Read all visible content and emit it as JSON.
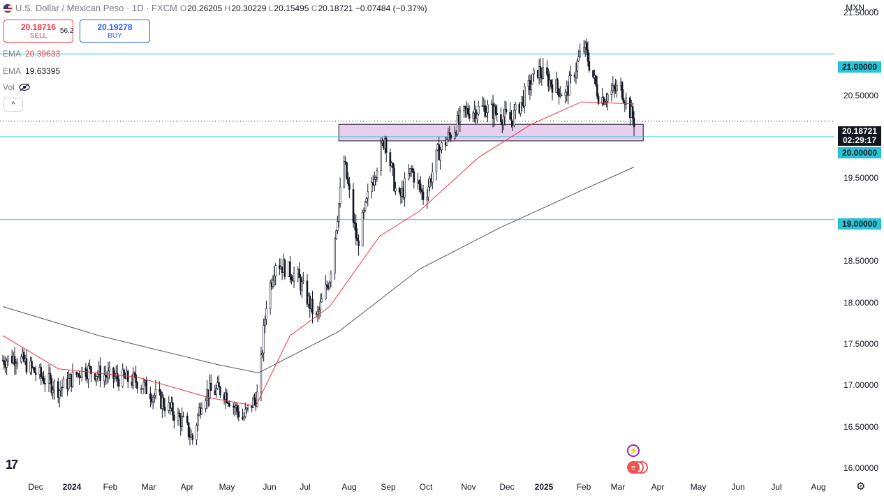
{
  "header": {
    "symbol_title": "U.S. Dollar / Mexican Peso · 1D · FXCM",
    "ohlc": [
      {
        "k": "O",
        "v": "20.26205"
      },
      {
        "k": "H",
        "v": "20.30229"
      },
      {
        "k": "L",
        "v": "20.15495"
      },
      {
        "k": "C",
        "v": "20.18721"
      }
    ],
    "change": "−0.07484 (−0.37%)",
    "currency": "MXN",
    "change_color": "#f23645"
  },
  "trade": {
    "sell_price": "20.18716",
    "sell_label": "SELL",
    "spread": "56.2",
    "buy_price": "20.19278",
    "buy_label": "BUY"
  },
  "indicators": [
    {
      "label": "EMA",
      "value": "20.39633",
      "color": "#f23645"
    },
    {
      "label": "EMA",
      "value": "19.63395",
      "color": "#555555"
    },
    {
      "label": "Vol",
      "value": "",
      "color": "#787b86"
    }
  ],
  "collapse_symbol": "^",
  "price_axis": {
    "ticks": [
      "21.50000",
      "21.00000",
      "20.50000",
      "20.00000",
      "19.50000",
      "19.00000",
      "18.50000",
      "18.00000",
      "17.50000",
      "17.00000",
      "16.50000",
      "16.00000"
    ],
    "current_price": "20.18721",
    "countdown": "02:29:17"
  },
  "time_axis": {
    "ticks": [
      "Dec",
      "2024",
      "Feb",
      "Mar",
      "Apr",
      "May",
      "Jun",
      "Jul",
      "Aug",
      "Sep",
      "Oct",
      "Nov",
      "Dec",
      "2025",
      "Feb",
      "Mar",
      "Apr",
      "May",
      "Jun",
      "Jul",
      "Aug"
    ]
  },
  "colors": {
    "level_line": "#26c6da",
    "zone_fill": "#e1bee7",
    "ema_fast": "#f23645",
    "ema_slow": "#555555",
    "candle": "#131722"
  },
  "chart_data": {
    "type": "candlestick",
    "symbol": "USD/MXN",
    "timeframe": "1D",
    "ylim": [
      15.9,
      21.65
    ],
    "horizontal_levels": [
      21.0,
      20.0,
      19.0
    ],
    "zone": {
      "from": "2024-08-01",
      "to": "2025-03-20",
      "low": 19.95,
      "high": 20.15
    },
    "close_path": [
      {
        "date": "2023-11-20",
        "close": 17.3
      },
      {
        "date": "2023-12-01",
        "close": 17.35
      },
      {
        "date": "2023-12-15",
        "close": 17.15
      },
      {
        "date": "2024-01-02",
        "close": 16.95
      },
      {
        "date": "2024-01-20",
        "close": 17.2
      },
      {
        "date": "2024-02-10",
        "close": 17.1
      },
      {
        "date": "2024-03-01",
        "close": 17.05
      },
      {
        "date": "2024-03-20",
        "close": 16.8
      },
      {
        "date": "2024-04-05",
        "close": 16.55
      },
      {
        "date": "2024-04-12",
        "close": 16.35
      },
      {
        "date": "2024-04-20",
        "close": 16.9
      },
      {
        "date": "2024-05-05",
        "close": 16.95
      },
      {
        "date": "2024-05-20",
        "close": 16.6
      },
      {
        "date": "2024-06-01",
        "close": 16.9
      },
      {
        "date": "2024-06-07",
        "close": 18.0
      },
      {
        "date": "2024-06-14",
        "close": 18.5
      },
      {
        "date": "2024-07-01",
        "close": 18.3
      },
      {
        "date": "2024-07-15",
        "close": 17.8
      },
      {
        "date": "2024-07-25",
        "close": 18.3
      },
      {
        "date": "2024-08-05",
        "close": 19.7
      },
      {
        "date": "2024-08-15",
        "close": 18.7
      },
      {
        "date": "2024-08-25",
        "close": 19.4
      },
      {
        "date": "2024-09-05",
        "close": 20.0
      },
      {
        "date": "2024-09-15",
        "close": 19.2
      },
      {
        "date": "2024-09-25",
        "close": 19.6
      },
      {
        "date": "2024-10-05",
        "close": 19.25
      },
      {
        "date": "2024-10-15",
        "close": 19.8
      },
      {
        "date": "2024-11-05",
        "close": 20.3
      },
      {
        "date": "2024-11-20",
        "close": 20.35
      },
      {
        "date": "2024-12-10",
        "close": 20.2
      },
      {
        "date": "2024-12-30",
        "close": 20.8
      },
      {
        "date": "2025-01-20",
        "close": 20.5
      },
      {
        "date": "2025-02-03",
        "close": 21.1
      },
      {
        "date": "2025-02-15",
        "close": 20.45
      },
      {
        "date": "2025-03-03",
        "close": 20.6
      },
      {
        "date": "2025-03-13",
        "close": 20.18721
      }
    ],
    "ema_fast_path": [
      {
        "date": "2023-11-20",
        "value": 17.6
      },
      {
        "date": "2024-01-01",
        "value": 17.2
      },
      {
        "date": "2024-03-01",
        "value": 17.1
      },
      {
        "date": "2024-04-25",
        "value": 16.85
      },
      {
        "date": "2024-05-30",
        "value": 16.75
      },
      {
        "date": "2024-06-25",
        "value": 17.6
      },
      {
        "date": "2024-07-25",
        "value": 17.95
      },
      {
        "date": "2024-09-01",
        "value": 18.8
      },
      {
        "date": "2024-10-01",
        "value": 19.1
      },
      {
        "date": "2024-11-15",
        "value": 19.75
      },
      {
        "date": "2024-12-25",
        "value": 20.15
      },
      {
        "date": "2025-02-01",
        "value": 20.42
      },
      {
        "date": "2025-03-13",
        "value": 20.39633
      }
    ],
    "ema_slow_path": [
      {
        "date": "2023-11-20",
        "value": 17.95
      },
      {
        "date": "2024-02-01",
        "value": 17.6
      },
      {
        "date": "2024-05-01",
        "value": 17.25
      },
      {
        "date": "2024-06-01",
        "value": 17.15
      },
      {
        "date": "2024-08-01",
        "value": 17.65
      },
      {
        "date": "2024-10-01",
        "value": 18.4
      },
      {
        "date": "2024-12-01",
        "value": 18.9
      },
      {
        "date": "2025-02-01",
        "value": 19.35
      },
      {
        "date": "2025-03-13",
        "value": 19.63395
      }
    ]
  }
}
